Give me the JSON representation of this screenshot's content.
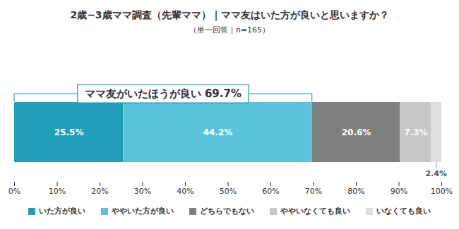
{
  "chart_data": {
    "type": "bar",
    "title": "2歳~3歳ママ調査（先輩ママ）｜ママ友はいた方が良いと思いますか？",
    "subtitle": "（単一回答｜n=165）",
    "orientation": "horizontal",
    "stacked": true,
    "data_labels": true,
    "legend": "bottom",
    "grid": false,
    "categories": [
      null
    ],
    "series": [
      {
        "name": "いた方が良い",
        "color": "#219fb8",
        "values": [
          25.5
        ],
        "value_labels": [
          "25.5%"
        ]
      },
      {
        "name": "ややいた方が良い",
        "color": "#5cc4da",
        "values": [
          44.2
        ],
        "value_labels": [
          "44.2%"
        ]
      },
      {
        "name": "どちらでもない",
        "color": "#7f7f7f",
        "values": [
          20.6
        ],
        "value_labels": [
          "20.6%"
        ]
      },
      {
        "name": "ややいなくても良い",
        "color": "#c7c7c7",
        "values": [
          7.3
        ],
        "value_labels": [
          "7.3%"
        ]
      },
      {
        "name": "いなくても良い",
        "color": "#dedede",
        "values": [
          2.4
        ],
        "value_labels": [
          "2.4%"
        ]
      }
    ],
    "xlim": [
      0,
      100
    ],
    "xticks": [
      {
        "value": 0,
        "label": "0%"
      },
      {
        "value": 10,
        "label": "10%"
      },
      {
        "value": 20,
        "label": "20%"
      },
      {
        "value": 30,
        "label": "30%"
      },
      {
        "value": 40,
        "label": "40%"
      },
      {
        "value": 50,
        "label": "50%"
      },
      {
        "value": 60,
        "label": "60%"
      },
      {
        "value": 70,
        "label": "70%"
      },
      {
        "value": 80,
        "label": "80%"
      },
      {
        "value": 90,
        "label": "90%"
      },
      {
        "value": 100,
        "label": "100%"
      }
    ],
    "annotations": [
      {
        "text": "ママ友がいたほうが良い 69.7%",
        "x_range": [
          0,
          69.7
        ]
      }
    ]
  }
}
